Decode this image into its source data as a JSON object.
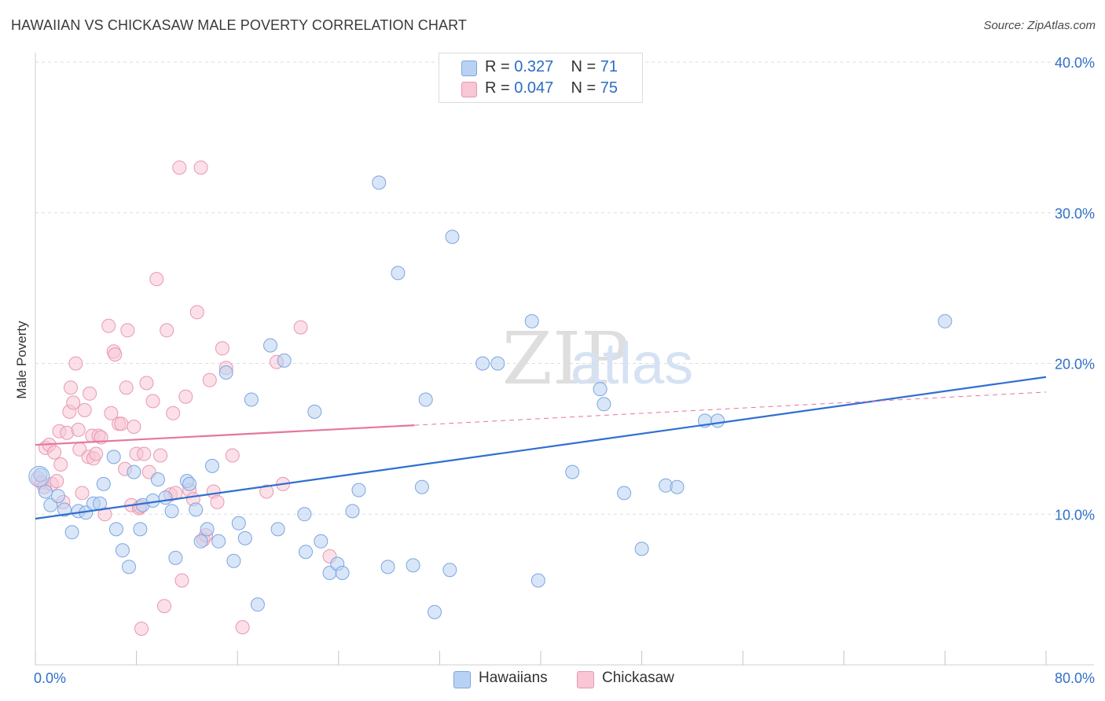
{
  "header": {
    "title": "HAWAIIAN VS CHICKASAW MALE POVERTY CORRELATION CHART",
    "source": "Source: ZipAtlas.com"
  },
  "legend": {
    "rows": [
      {
        "r_label": "R =",
        "r_value": "0.327",
        "n_label": "N =",
        "n_value": "71"
      },
      {
        "r_label": "R =",
        "r_value": "0.047",
        "n_label": "N =",
        "n_value": "75"
      }
    ]
  },
  "bottom_legend": {
    "items": [
      "Hawaiians",
      "Chickasaw"
    ]
  },
  "colors": {
    "blue_fill": "#b9d2f3",
    "blue_stroke": "#7aa6e0",
    "blue_line": "#2f6fd0",
    "pink_fill": "#f8c6d5",
    "pink_stroke": "#e898b2",
    "pink_line": "#e4769d",
    "axis_text": "#3070c8",
    "grid": "#dddddd"
  },
  "chart_data": {
    "type": "scatter",
    "title": "HAWAIIAN VS CHICKASAW MALE POVERTY CORRELATION CHART",
    "xlabel": "",
    "ylabel": "Male Poverty",
    "xlim": [
      0,
      80
    ],
    "ylim": [
      0,
      40
    ],
    "x_tick_labels": [
      "0.0%",
      "80.0%"
    ],
    "y_ticks": [
      10,
      20,
      30,
      40
    ],
    "y_tick_labels": [
      "10.0%",
      "20.0%",
      "30.0%",
      "40.0%"
    ],
    "grid": true,
    "legend_position": "top-center",
    "watermark": "ZIPatlas",
    "series": [
      {
        "name": "Hawaiians",
        "R": 0.327,
        "N": 71,
        "trend": {
          "x": [
            0,
            80
          ],
          "y": [
            9.7,
            19.1
          ],
          "dashed_after": null
        },
        "points": [
          [
            0.4,
            12.6
          ],
          [
            0.8,
            11.5
          ],
          [
            1.2,
            10.6
          ],
          [
            1.8,
            11.2
          ],
          [
            2.3,
            10.3
          ],
          [
            2.9,
            8.8
          ],
          [
            3.4,
            10.2
          ],
          [
            4.0,
            10.1
          ],
          [
            4.6,
            10.7
          ],
          [
            5.1,
            10.7
          ],
          [
            5.4,
            12.0
          ],
          [
            6.2,
            13.8
          ],
          [
            6.4,
            9.0
          ],
          [
            6.9,
            7.6
          ],
          [
            7.4,
            6.5
          ],
          [
            7.8,
            12.8
          ],
          [
            8.3,
            9.0
          ],
          [
            8.5,
            10.6
          ],
          [
            9.3,
            10.9
          ],
          [
            9.7,
            12.3
          ],
          [
            10.3,
            11.1
          ],
          [
            10.8,
            10.2
          ],
          [
            11.1,
            7.1
          ],
          [
            12.0,
            12.2
          ],
          [
            12.2,
            12.0
          ],
          [
            12.7,
            10.3
          ],
          [
            13.1,
            8.2
          ],
          [
            13.6,
            9.0
          ],
          [
            14.0,
            13.2
          ],
          [
            14.5,
            8.2
          ],
          [
            15.1,
            19.4
          ],
          [
            15.7,
            6.9
          ],
          [
            16.1,
            9.4
          ],
          [
            16.6,
            8.4
          ],
          [
            17.1,
            17.6
          ],
          [
            17.6,
            4.0
          ],
          [
            18.6,
            21.2
          ],
          [
            19.2,
            9.0
          ],
          [
            19.7,
            20.2
          ],
          [
            21.3,
            10.0
          ],
          [
            21.4,
            7.5
          ],
          [
            22.1,
            16.8
          ],
          [
            22.6,
            8.2
          ],
          [
            23.3,
            6.1
          ],
          [
            23.9,
            6.7
          ],
          [
            24.3,
            6.1
          ],
          [
            25.1,
            10.2
          ],
          [
            25.6,
            11.6
          ],
          [
            27.2,
            32.0
          ],
          [
            27.9,
            6.5
          ],
          [
            28.7,
            26.0
          ],
          [
            29.9,
            6.6
          ],
          [
            30.6,
            11.8
          ],
          [
            30.9,
            17.6
          ],
          [
            31.6,
            3.5
          ],
          [
            32.8,
            6.3
          ],
          [
            33.0,
            28.4
          ],
          [
            35.4,
            20.0
          ],
          [
            36.6,
            20.0
          ],
          [
            39.3,
            22.8
          ],
          [
            39.8,
            5.6
          ],
          [
            42.5,
            12.8
          ],
          [
            44.7,
            18.3
          ],
          [
            45.0,
            17.3
          ],
          [
            46.6,
            11.4
          ],
          [
            48.0,
            7.7
          ],
          [
            49.9,
            11.9
          ],
          [
            50.8,
            11.8
          ],
          [
            53.0,
            16.2
          ],
          [
            54.0,
            16.2
          ],
          [
            72.0,
            22.8
          ]
        ]
      },
      {
        "name": "Chickasaw",
        "R": 0.047,
        "N": 75,
        "trend": {
          "x": [
            0,
            30,
            80
          ],
          "y": [
            14.6,
            15.9,
            18.1
          ],
          "dashed_after": 30
        },
        "points": [
          [
            0.2,
            12.4
          ],
          [
            0.5,
            12.1
          ],
          [
            0.7,
            11.8
          ],
          [
            0.8,
            14.4
          ],
          [
            1.1,
            14.6
          ],
          [
            1.3,
            12.0
          ],
          [
            1.5,
            14.1
          ],
          [
            1.7,
            12.2
          ],
          [
            1.9,
            15.5
          ],
          [
            2.0,
            13.3
          ],
          [
            2.2,
            10.8
          ],
          [
            2.5,
            15.4
          ],
          [
            2.7,
            16.8
          ],
          [
            2.8,
            18.4
          ],
          [
            3.0,
            17.4
          ],
          [
            3.2,
            20.0
          ],
          [
            3.4,
            15.6
          ],
          [
            3.5,
            14.3
          ],
          [
            3.7,
            11.4
          ],
          [
            3.9,
            16.9
          ],
          [
            4.2,
            13.8
          ],
          [
            4.3,
            18.0
          ],
          [
            4.5,
            15.2
          ],
          [
            4.6,
            13.7
          ],
          [
            4.8,
            14.0
          ],
          [
            5.0,
            15.2
          ],
          [
            5.2,
            15.1
          ],
          [
            5.5,
            10.0
          ],
          [
            5.8,
            22.5
          ],
          [
            6.0,
            16.7
          ],
          [
            6.2,
            20.8
          ],
          [
            6.3,
            20.6
          ],
          [
            6.6,
            16.0
          ],
          [
            6.8,
            16.0
          ],
          [
            7.1,
            13.0
          ],
          [
            7.2,
            18.4
          ],
          [
            7.3,
            22.2
          ],
          [
            7.6,
            10.6
          ],
          [
            7.8,
            15.8
          ],
          [
            8.0,
            14.0
          ],
          [
            8.2,
            10.4
          ],
          [
            8.4,
            2.4
          ],
          [
            8.6,
            14.0
          ],
          [
            8.8,
            18.7
          ],
          [
            9.0,
            12.8
          ],
          [
            9.3,
            17.5
          ],
          [
            9.6,
            25.6
          ],
          [
            9.9,
            13.9
          ],
          [
            10.2,
            3.9
          ],
          [
            10.4,
            22.2
          ],
          [
            10.7,
            11.3
          ],
          [
            10.9,
            16.7
          ],
          [
            11.1,
            11.4
          ],
          [
            11.4,
            33.0
          ],
          [
            11.6,
            5.6
          ],
          [
            11.9,
            17.8
          ],
          [
            12.2,
            11.6
          ],
          [
            12.5,
            11.0
          ],
          [
            12.8,
            23.4
          ],
          [
            13.1,
            33.0
          ],
          [
            13.3,
            8.3
          ],
          [
            13.5,
            8.6
          ],
          [
            13.8,
            18.9
          ],
          [
            14.1,
            11.5
          ],
          [
            14.4,
            10.8
          ],
          [
            14.8,
            21.0
          ],
          [
            15.1,
            19.7
          ],
          [
            15.6,
            13.9
          ],
          [
            16.4,
            2.5
          ],
          [
            18.3,
            11.5
          ],
          [
            19.1,
            20.1
          ],
          [
            19.6,
            12.0
          ],
          [
            21.0,
            22.4
          ],
          [
            23.3,
            7.2
          ],
          [
            8.3,
            10.5
          ]
        ]
      }
    ]
  }
}
